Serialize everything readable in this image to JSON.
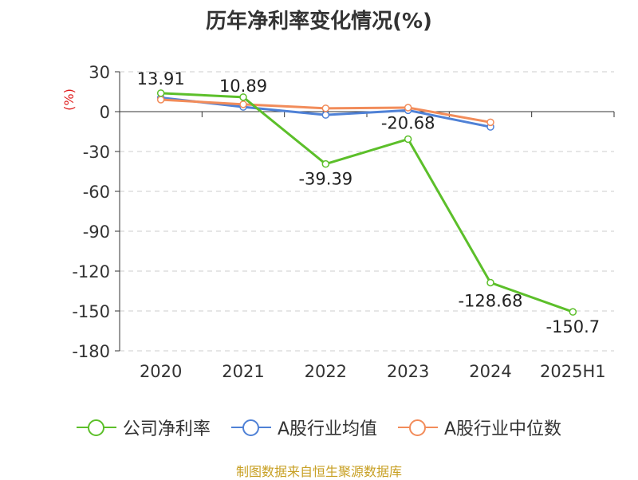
{
  "chart_data": {
    "type": "line",
    "title": "历年净利率变化情况(%)",
    "ylabel": "(%)",
    "xlabel": "",
    "categories": [
      "2020",
      "2021",
      "2022",
      "2023",
      "2024",
      "2025H1"
    ],
    "ylim": [
      -180,
      30
    ],
    "yticks": [
      30,
      0,
      -30,
      -60,
      -90,
      -120,
      -150,
      -180
    ],
    "ytick_labels": [
      "30",
      "0",
      "-30",
      "-60",
      "-90",
      "-120",
      "-150",
      "-180"
    ],
    "series": [
      {
        "name": "公司净利率",
        "color": "#5cbf2a",
        "values": [
          13.91,
          10.89,
          -39.39,
          -20.68,
          -128.68,
          -150.7
        ],
        "labels": [
          "13.91",
          "10.89",
          "-39.39",
          "-20.68",
          "-128.68",
          "-150.7"
        ]
      },
      {
        "name": "A股行业均值",
        "color": "#4f81d6",
        "values": [
          10.5,
          3.5,
          -2.5,
          1.0,
          -11.5,
          null
        ]
      },
      {
        "name": "A股行业中位数",
        "color": "#f28c5a",
        "values": [
          9.0,
          5.5,
          2.5,
          3.0,
          -8.0,
          null
        ]
      }
    ],
    "grid": true,
    "legend_position": "bottom"
  },
  "source": "制图数据来自恒生聚源数据库"
}
